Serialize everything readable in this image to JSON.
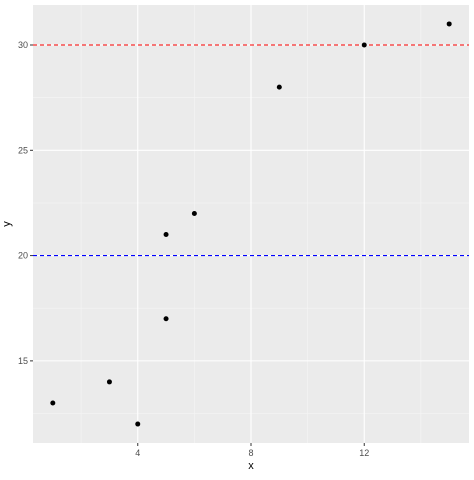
{
  "chart_data": {
    "type": "scatter",
    "title": "",
    "xlabel": "x",
    "ylabel": "y",
    "xlim": [
      0.3,
      15.7
    ],
    "ylim": [
      11.1,
      31.9
    ],
    "x_ticks": [
      4,
      8,
      12
    ],
    "y_ticks": [
      15,
      20,
      25,
      30
    ],
    "grid": true,
    "points": [
      {
        "x": 1,
        "y": 13
      },
      {
        "x": 3,
        "y": 14
      },
      {
        "x": 4,
        "y": 12
      },
      {
        "x": 5,
        "y": 17
      },
      {
        "x": 5,
        "y": 21
      },
      {
        "x": 6,
        "y": 22
      },
      {
        "x": 9,
        "y": 28
      },
      {
        "x": 12,
        "y": 30
      },
      {
        "x": 15,
        "y": 31
      }
    ],
    "hlines": [
      {
        "y": 30,
        "color": "#ff0000",
        "style": "dashed"
      },
      {
        "y": 20,
        "color": "#0000ff",
        "style": "dashed"
      }
    ],
    "colors": {
      "panel_background": "#ebebeb",
      "grid_major": "#ffffff",
      "grid_minor": "#f5f5f5",
      "point": "#000000",
      "tick_text": "#4d4d4d",
      "axis_title": "#000000"
    }
  }
}
